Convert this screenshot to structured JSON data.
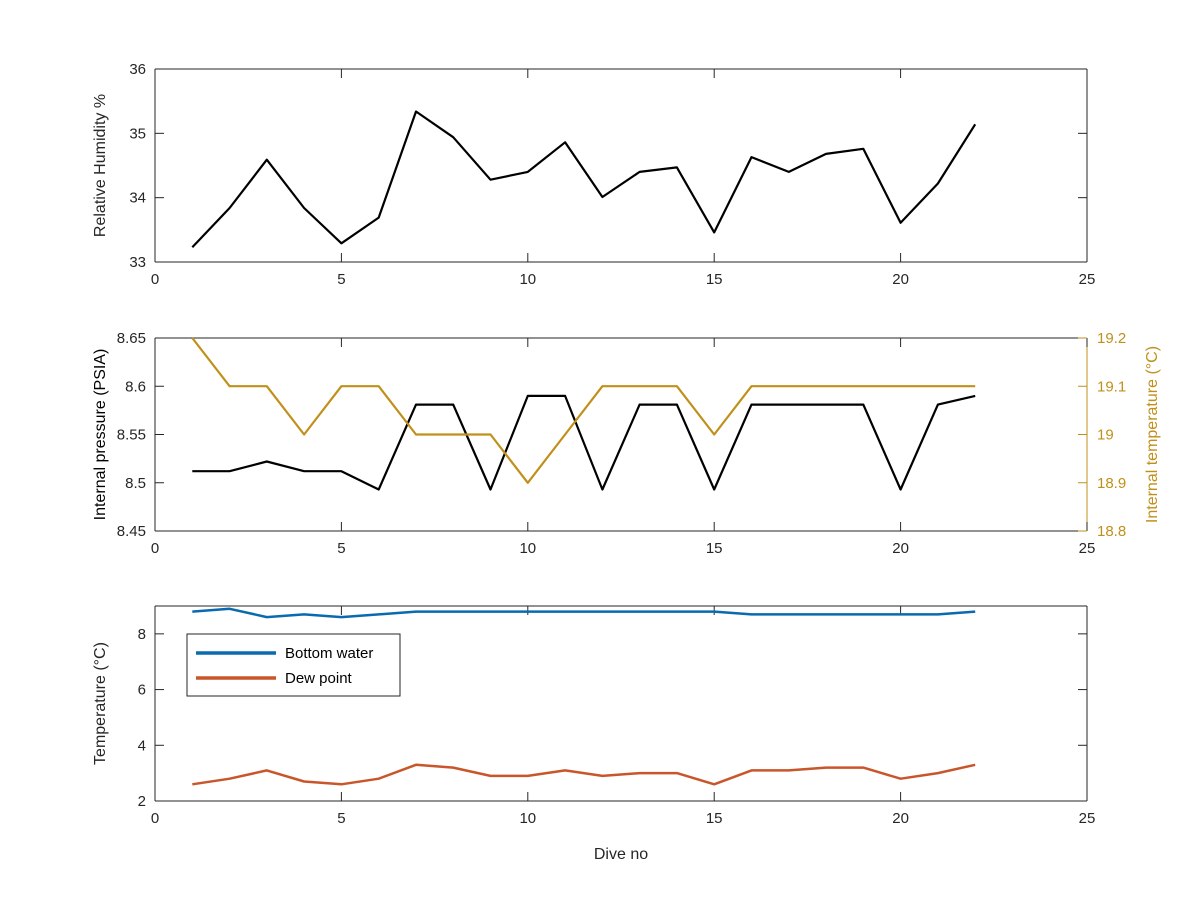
{
  "chart_data": [
    {
      "type": "line",
      "xlabel": "",
      "ylabel": "Relative Humidity %",
      "xlim": [
        0,
        25
      ],
      "ylim": [
        33,
        36
      ],
      "xticks": [
        0,
        5,
        10,
        15,
        20,
        25
      ],
      "yticks": [
        33,
        34,
        35,
        36
      ],
      "x": [
        1,
        2,
        3,
        4,
        5,
        6,
        7,
        8,
        9,
        10,
        11,
        12,
        13,
        14,
        15,
        16,
        17,
        18,
        19,
        20,
        21,
        22
      ],
      "series": [
        {
          "color": "#000000",
          "values": [
            33.23,
            33.84,
            34.59,
            33.84,
            33.29,
            33.69,
            35.34,
            34.94,
            34.28,
            34.4,
            34.86,
            34.01,
            34.4,
            34.47,
            33.46,
            34.63,
            34.4,
            34.68,
            34.76,
            33.61,
            34.22,
            35.14
          ]
        }
      ],
      "grid": false
    },
    {
      "type": "line",
      "xlabel": "",
      "ylabel": "Internal pressure (PSIA)",
      "y2label": "Internal temperature (°C)",
      "xlim": [
        0,
        25
      ],
      "ylim": [
        8.45,
        8.65
      ],
      "y2lim": [
        18.8,
        19.2
      ],
      "xticks": [
        0,
        5,
        10,
        15,
        20,
        25
      ],
      "yticks": [
        8.45,
        8.5,
        8.55,
        8.6,
        8.65
      ],
      "y2ticks": [
        18.8,
        18.9,
        19,
        19.1,
        19.2
      ],
      "x": [
        1,
        2,
        3,
        4,
        5,
        6,
        7,
        8,
        9,
        10,
        11,
        12,
        13,
        14,
        15,
        16,
        17,
        18,
        19,
        20,
        21,
        22
      ],
      "series": [
        {
          "axis": "left",
          "color": "#000000",
          "values": [
            8.512,
            8.512,
            8.522,
            8.512,
            8.512,
            8.493,
            8.581,
            8.581,
            8.493,
            8.59,
            8.59,
            8.493,
            8.581,
            8.581,
            8.493,
            8.581,
            8.581,
            8.581,
            8.581,
            8.493,
            8.581,
            8.59
          ]
        },
        {
          "axis": "right",
          "color": "#c0901a",
          "values": [
            19.2,
            19.1,
            19.1,
            19.0,
            19.1,
            19.1,
            19.0,
            19.0,
            19.0,
            18.9,
            19.0,
            19.1,
            19.1,
            19.1,
            19.0,
            19.1,
            19.1,
            19.1,
            19.1,
            19.1,
            19.1,
            19.1
          ]
        }
      ],
      "grid": false
    },
    {
      "type": "line",
      "xlabel": "Dive no",
      "ylabel": "Temperature (°C)",
      "xlim": [
        0,
        25
      ],
      "ylim": [
        2,
        9
      ],
      "xticks": [
        0,
        5,
        10,
        15,
        20,
        25
      ],
      "yticks": [
        2,
        4,
        6,
        8
      ],
      "x": [
        1,
        2,
        3,
        4,
        5,
        6,
        7,
        8,
        9,
        10,
        11,
        12,
        13,
        14,
        15,
        16,
        17,
        18,
        19,
        20,
        21,
        22
      ],
      "series": [
        {
          "name": "Bottom water",
          "color": "#0a6ab0",
          "values": [
            8.8,
            8.9,
            8.6,
            8.7,
            8.6,
            8.7,
            8.8,
            8.8,
            8.8,
            8.8,
            8.8,
            8.8,
            8.8,
            8.8,
            8.8,
            8.7,
            8.7,
            8.7,
            8.7,
            8.7,
            8.7,
            8.8
          ]
        },
        {
          "name": "Dew point",
          "color": "#c9562a",
          "values": [
            2.6,
            2.8,
            3.1,
            2.7,
            2.6,
            2.8,
            3.3,
            3.2,
            2.9,
            2.9,
            3.1,
            2.9,
            3.0,
            3.0,
            2.6,
            3.1,
            3.1,
            3.2,
            3.2,
            2.8,
            3.0,
            3.3
          ]
        }
      ],
      "legend": "upper-left",
      "grid": false
    }
  ]
}
